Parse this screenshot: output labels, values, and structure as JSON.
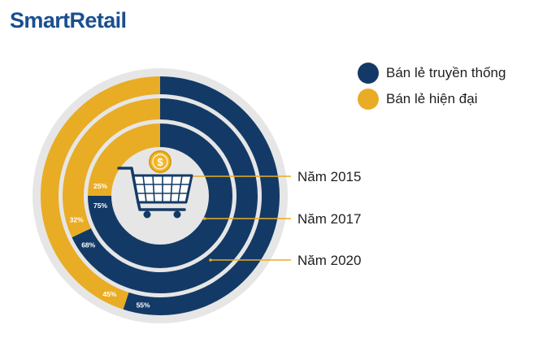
{
  "brand": {
    "logo_text": "SmartRetail"
  },
  "colors": {
    "traditional": "#133a66",
    "modern": "#e9ac25",
    "background_disc": "#e6e6e6",
    "connector": "#e9ac25"
  },
  "legend": [
    {
      "label": "Bán lẻ truyền thống",
      "color": "#133a66"
    },
    {
      "label": "Bán lẻ hiện đại",
      "color": "#e9ac25"
    }
  ],
  "center_icons": [
    "dollar-coin-icon",
    "shopping-cart-icon"
  ],
  "chart_data": {
    "type": "pie",
    "style": "concentric-rings",
    "series_names": [
      "Bán lẻ truyền thống",
      "Bán lẻ hiện đại"
    ],
    "rings": [
      {
        "year_label": "Năm 2015",
        "traditional": 75,
        "modern": 25,
        "traditional_label": "75%",
        "modern_label": "25%"
      },
      {
        "year_label": "Năm 2017",
        "traditional": 68,
        "modern": 32,
        "traditional_label": "68%",
        "modern_label": "32%"
      },
      {
        "year_label": "Năm 2020",
        "traditional": 55,
        "modern": 45,
        "traditional_label": "55%",
        "modern_label": "45%"
      }
    ],
    "legend_position": "top-right"
  }
}
